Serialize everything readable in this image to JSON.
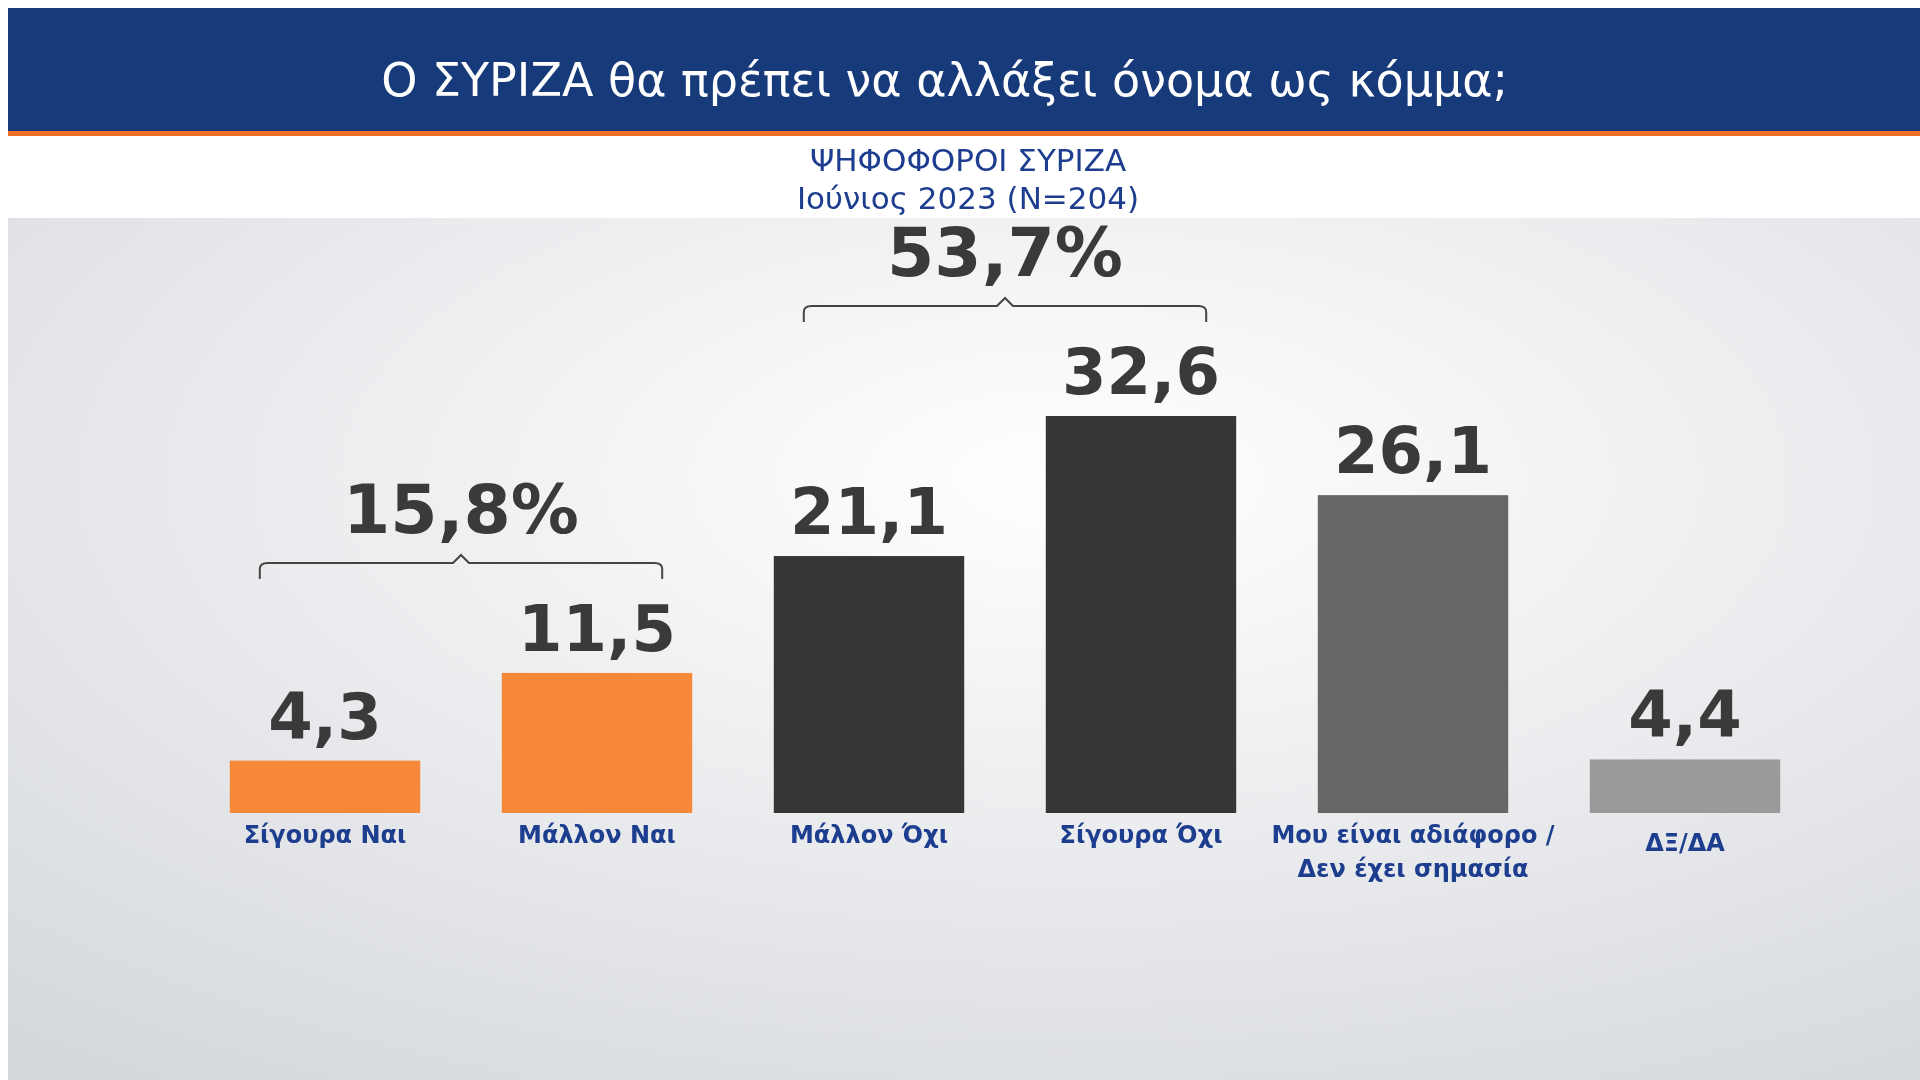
{
  "chart_data": {
    "type": "bar",
    "title": "Ο ΣΥΡΙΖΑ θα πρέπει να αλλάξει όνομα ως κόμμα;",
    "subtitle": "ΨΗΦΟΦΟΡΟΙ ΣΥΡΙΖΑ\nΙούνιος 2023 (N=204)",
    "categories": [
      "Σίγουρα Ναι",
      "Μάλλον Ναι",
      "Μάλλον Όχι",
      "Σίγουρα Όχι",
      "Μου είναι αδιάφορο / Δεν έχει σημασία",
      "ΔΞ/ΔΑ"
    ],
    "values": [
      4.3,
      11.5,
      21.1,
      32.6,
      26.1,
      4.4
    ],
    "colors": [
      "#f7883a",
      "#f7883a",
      "#363636",
      "#363636",
      "#666666",
      "#9a9a9a"
    ],
    "value_labels": [
      "4,3",
      "11,5",
      "21,1",
      "32,6",
      "26,1",
      "4,4"
    ],
    "annotations": [
      "15,8%",
      "53,7%"
    ],
    "grid": false
  }
}
